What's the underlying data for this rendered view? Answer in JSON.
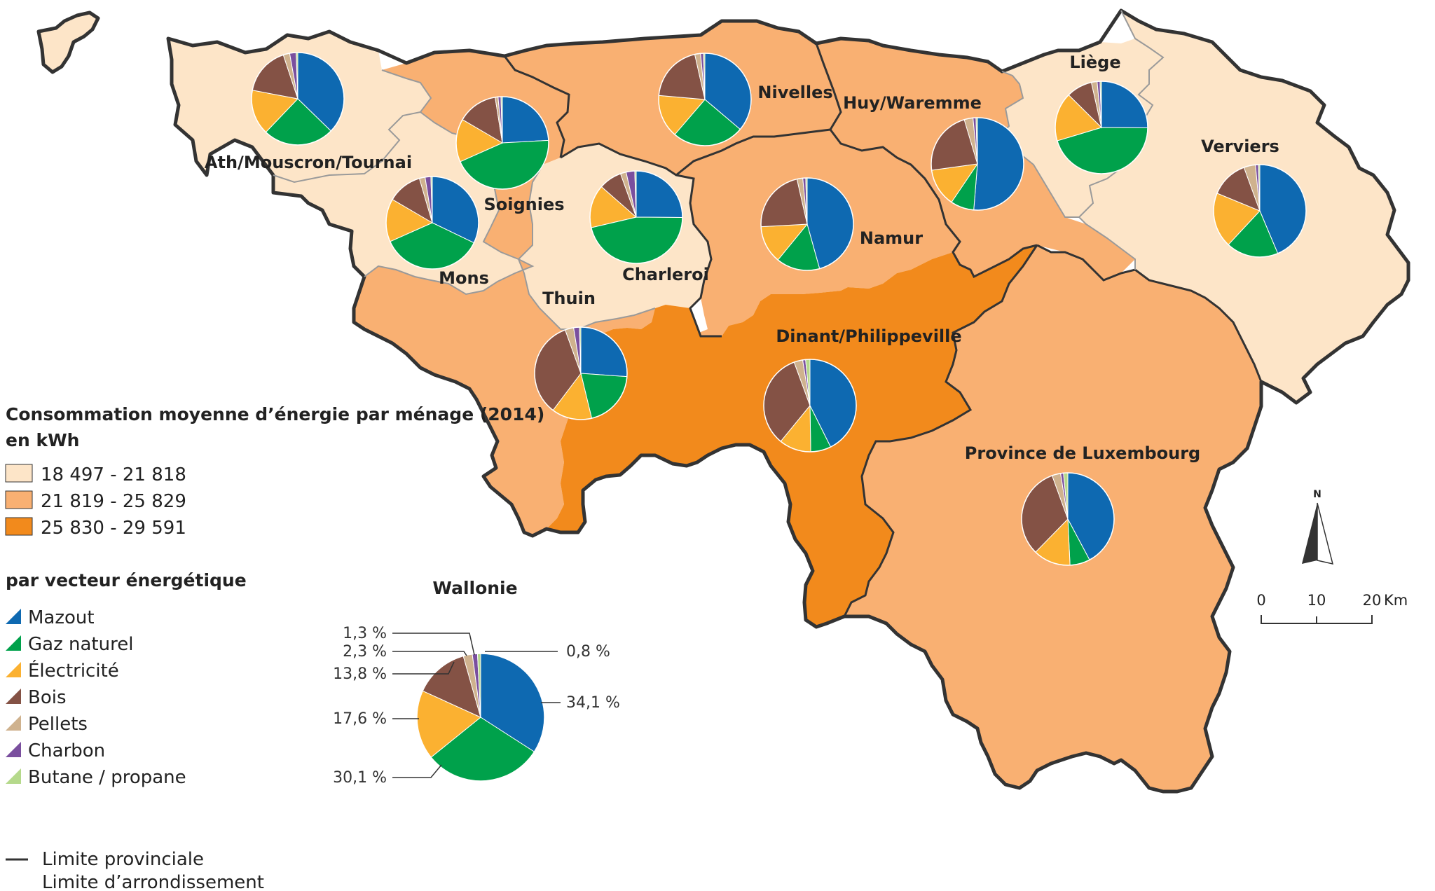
{
  "colors": {
    "classes": [
      "#fde5c8",
      "#f9b072",
      "#f28a1c"
    ],
    "energy": {
      "mazout": "#0e69b1",
      "gaz": "#00a14b",
      "electricite": "#fbb131",
      "bois": "#845245",
      "pellets": "#cfb28e",
      "charbon": "#7a4f9e",
      "butane": "#b5d98b"
    },
    "provincial_border": "#333333",
    "district_border": "#9a9a9a"
  },
  "regions": [
    {
      "id": "ath",
      "name": "Ath/Mouscron/Tournai",
      "class": 0
    },
    {
      "id": "soignies",
      "name": "Soignies",
      "class": 1
    },
    {
      "id": "mons",
      "name": "Mons",
      "class": 0
    },
    {
      "id": "charleroi",
      "name": "Charleroi",
      "class": 0
    },
    {
      "id": "thuin",
      "name": "Thuin",
      "class": 1
    },
    {
      "id": "nivelles",
      "name": "Nivelles",
      "class": 1
    },
    {
      "id": "namur",
      "name": "Namur",
      "class": 1
    },
    {
      "id": "huy",
      "name": "Huy/Waremme",
      "class": 1
    },
    {
      "id": "liege",
      "name": "Liège",
      "class": 0
    },
    {
      "id": "verviers",
      "name": "Verviers",
      "class": 0
    },
    {
      "id": "dinant",
      "name": "Dinant/Philippeville",
      "class": 2
    },
    {
      "id": "luxembourg",
      "name": "Province de Luxembourg",
      "class": 1
    }
  ],
  "pies": [
    {
      "region": "ath",
      "values": [
        33,
        22,
        14,
        15,
        2,
        2,
        0.5
      ]
    },
    {
      "region": "soignies",
      "values": [
        24,
        44,
        15,
        14,
        1,
        1,
        0.5
      ]
    },
    {
      "region": "mons",
      "values": [
        32,
        36,
        15,
        12,
        2,
        2,
        0.5
      ]
    },
    {
      "region": "charleroi",
      "values": [
        25,
        46,
        15,
        8,
        2,
        3,
        0.5
      ]
    },
    {
      "region": "nivelles",
      "values": [
        36,
        25,
        15,
        20,
        2,
        1,
        0.5
      ]
    },
    {
      "region": "thuin",
      "values": [
        26,
        20,
        14,
        34,
        3,
        2,
        0.5
      ]
    },
    {
      "region": "namur",
      "values": [
        45,
        15,
        13,
        22,
        2,
        1,
        0.5
      ]
    },
    {
      "region": "huy",
      "values": [
        50,
        8,
        13,
        22,
        3,
        1,
        0.5
      ]
    },
    {
      "region": "liege",
      "values": [
        25,
        45,
        17,
        9,
        2,
        1,
        0.5
      ]
    },
    {
      "region": "verviers",
      "values": [
        43,
        18,
        19,
        13,
        4,
        1,
        0.5
      ]
    },
    {
      "region": "dinant",
      "values": [
        42,
        7,
        11,
        33,
        3,
        1,
        1.5
      ]
    },
    {
      "region": "luxembourg",
      "values": [
        42,
        7,
        13,
        32,
        3,
        1,
        1.5
      ]
    }
  ],
  "legend": {
    "title_line1": "Consommation moyenne d’énergie par ménage (2014)",
    "title_line2": "en kWh",
    "classes": [
      "18 497 - 21 818",
      "21 819 - 25 829",
      "25 830 - 29 591"
    ],
    "vector_title": "par vecteur énergétique",
    "vectors": [
      "Mazout",
      "Gaz naturel",
      "Électricité",
      "Bois",
      "Pellets",
      "Charbon",
      "Butane / propane"
    ],
    "borders": [
      "Limite provinciale",
      "Limite d’arrondissement"
    ]
  },
  "wallonie": {
    "title": "Wallonie",
    "values": [
      34.1,
      30.1,
      17.6,
      13.8,
      2.3,
      1.3,
      0.8
    ],
    "labels": [
      "34,1 %",
      "30,1 %",
      "17,6 %",
      "13,8 %",
      "2,3 %",
      "1,3 %",
      "0,8 %"
    ]
  },
  "scale": {
    "north": "N",
    "ticks": [
      "0",
      "10",
      "20"
    ],
    "unit": "Km"
  }
}
